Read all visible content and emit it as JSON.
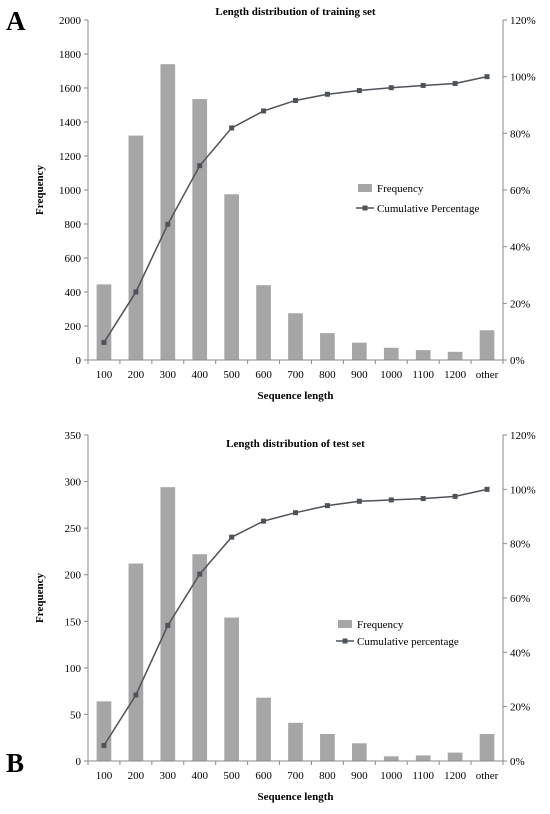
{
  "panels": {
    "a": {
      "letter": "A"
    },
    "b": {
      "letter": "B"
    }
  },
  "colors": {
    "bar": "#a6a6a6",
    "line": "#4d5359",
    "axis": "#8a8a8a"
  },
  "chart_data": [
    {
      "type": "bar",
      "title": "Length distribution of training set",
      "xlabel": "Sequence length",
      "ylabel": "Frequency",
      "categories": [
        "100",
        "200",
        "300",
        "400",
        "500",
        "600",
        "700",
        "800",
        "900",
        "1000",
        "1100",
        "1200",
        "other"
      ],
      "ylim": [
        0,
        2000
      ],
      "yticks": [
        "0",
        "200",
        "400",
        "600",
        "800",
        "1000",
        "1200",
        "1400",
        "1600",
        "1800",
        "2000"
      ],
      "y2lim": [
        0,
        120
      ],
      "y2ticks": [
        "0%",
        "20%",
        "40%",
        "60%",
        "80%",
        "100%",
        "120%"
      ],
      "legend_position": "center-right",
      "grid": false,
      "series": [
        {
          "name": "Frequency",
          "type": "bar",
          "axis": "left",
          "values": [
            445,
            1320,
            1740,
            1535,
            975,
            440,
            275,
            158,
            102,
            72,
            58,
            48,
            175
          ]
        },
        {
          "name": "Cumulative Percentage",
          "type": "line",
          "axis": "right",
          "values": [
            6.2,
            24.0,
            47.9,
            68.6,
            81.9,
            87.9,
            91.6,
            93.8,
            95.1,
            96.1,
            96.9,
            97.6,
            100
          ]
        }
      ]
    },
    {
      "type": "bar",
      "title": "Length distribution of test set",
      "xlabel": "Sequence length",
      "ylabel": "Frequency",
      "categories": [
        "100",
        "200",
        "300",
        "400",
        "500",
        "600",
        "700",
        "800",
        "900",
        "1000",
        "1100",
        "1200",
        "other"
      ],
      "ylim": [
        0,
        350
      ],
      "yticks": [
        "0",
        "50",
        "100",
        "150",
        "200",
        "250",
        "300",
        "350"
      ],
      "y2lim": [
        0,
        120
      ],
      "y2ticks": [
        "0%",
        "20%",
        "40%",
        "60%",
        "80%",
        "100%",
        "120%"
      ],
      "legend_position": "center-right",
      "grid": false,
      "series": [
        {
          "name": "Frequency",
          "type": "bar",
          "axis": "left",
          "values": [
            64,
            212,
            294,
            222,
            154,
            68,
            41,
            29,
            19,
            5,
            6,
            9,
            29
          ]
        },
        {
          "name": "Cumulative percentage",
          "type": "line",
          "axis": "right",
          "values": [
            5.7,
            24.3,
            49.9,
            68.8,
            82.4,
            88.3,
            91.4,
            94.0,
            95.6,
            96.1,
            96.6,
            97.4,
            100
          ]
        }
      ]
    }
  ]
}
